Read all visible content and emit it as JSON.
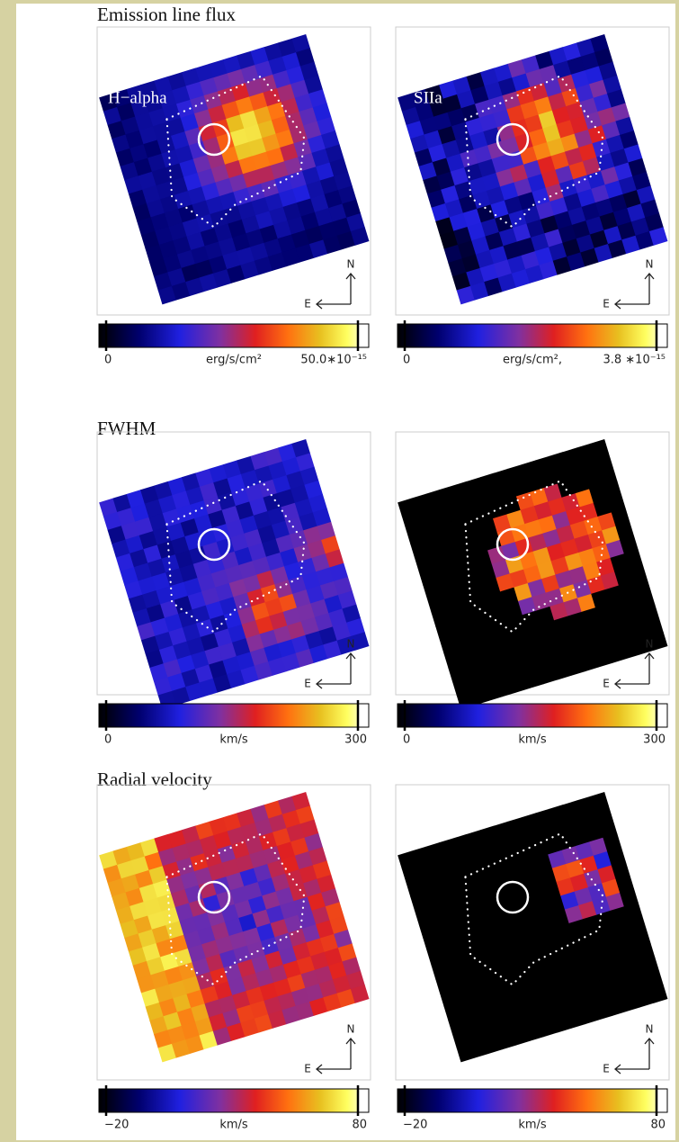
{
  "rows": [
    {
      "title": "Emission line flux",
      "panels": [
        {
          "label": "H−alpha",
          "colorbar": {
            "min": "0",
            "unit": "erg/s/cm²",
            "max": "50.0∗10⁻¹⁵"
          }
        },
        {
          "label": "SIIa",
          "colorbar": {
            "min": "0",
            "unit": "erg/s/cm²,",
            "max": "3.8 ∗10⁻¹⁵"
          }
        }
      ]
    },
    {
      "title": "FWHM",
      "panels": [
        {
          "colorbar": {
            "min": "0",
            "unit": "km/s",
            "max": "300"
          }
        },
        {
          "colorbar": {
            "min": "0",
            "unit": "km/s",
            "max": "300"
          }
        }
      ]
    },
    {
      "title": "Radial velocity",
      "panels": [
        {
          "colorbar": {
            "min": "−20",
            "unit": "km/s",
            "max": "80"
          }
        },
        {
          "colorbar": {
            "min": "−20",
            "unit": "km/s",
            "max": "80"
          }
        }
      ]
    }
  ],
  "compass": {
    "north": "N",
    "east": "E"
  }
}
